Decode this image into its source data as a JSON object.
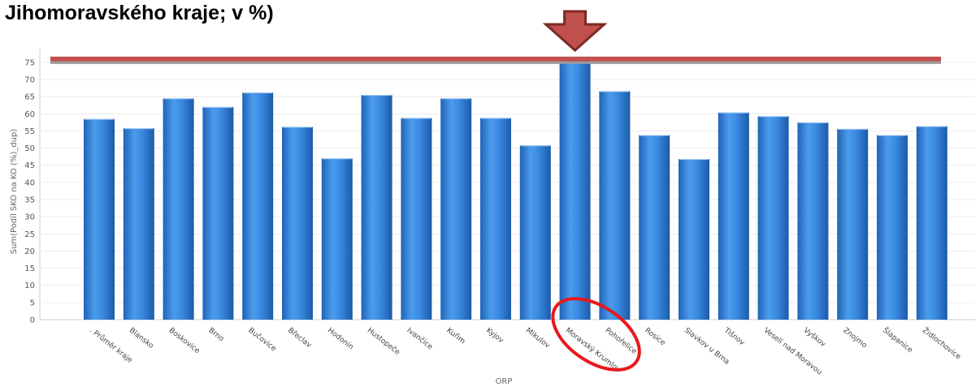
{
  "header": {
    "title": "Jihomoravského kraje; v %)"
  },
  "colors": {
    "bar": "#2f80d8",
    "bar_light": "#5aa6ee",
    "highlight_line": "#c0504d",
    "arrow_fill": "#c0504d",
    "arrow_stroke": "#7b2a26",
    "circle": "#e8191c"
  },
  "chart_data": {
    "type": "bar",
    "ylabel": "Sum(Podíl SKO na KO (%)_dup)",
    "xlabel": "ORP",
    "ylim": [
      0,
      79
    ],
    "yticks": [
      "0",
      "5",
      "10",
      "15",
      "20",
      "25",
      "30",
      "35",
      "40",
      "45",
      "50",
      "55",
      "60",
      "65",
      "70",
      "75"
    ],
    "grid": true,
    "categories": [
      ". Průměr kraje",
      "Blansko",
      "Boskovice",
      "Brno",
      "Bučovice",
      "Břeclav",
      "Hodonín",
      "Hustopeče",
      "Ivančice",
      "Kuřim",
      "Kyjov",
      "Mikulov",
      "Moravský Krumlov",
      "Pohořelice",
      "Rosice",
      "Slavkov u Brna",
      "Tišnov",
      "Veselí nad Moravou",
      "Vyškov",
      "Znojmo",
      "Šlapanice",
      "Židlochovice"
    ],
    "values": [
      58.5,
      55.8,
      64.5,
      62.0,
      66.2,
      56.2,
      47.0,
      65.5,
      58.8,
      64.5,
      58.8,
      50.8,
      75.5,
      66.6,
      53.8,
      46.8,
      60.4,
      59.3,
      57.5,
      55.6,
      53.8,
      56.4
    ],
    "highlight": {
      "category": "Moravský Krumlov",
      "reference_value": 75.5
    }
  }
}
